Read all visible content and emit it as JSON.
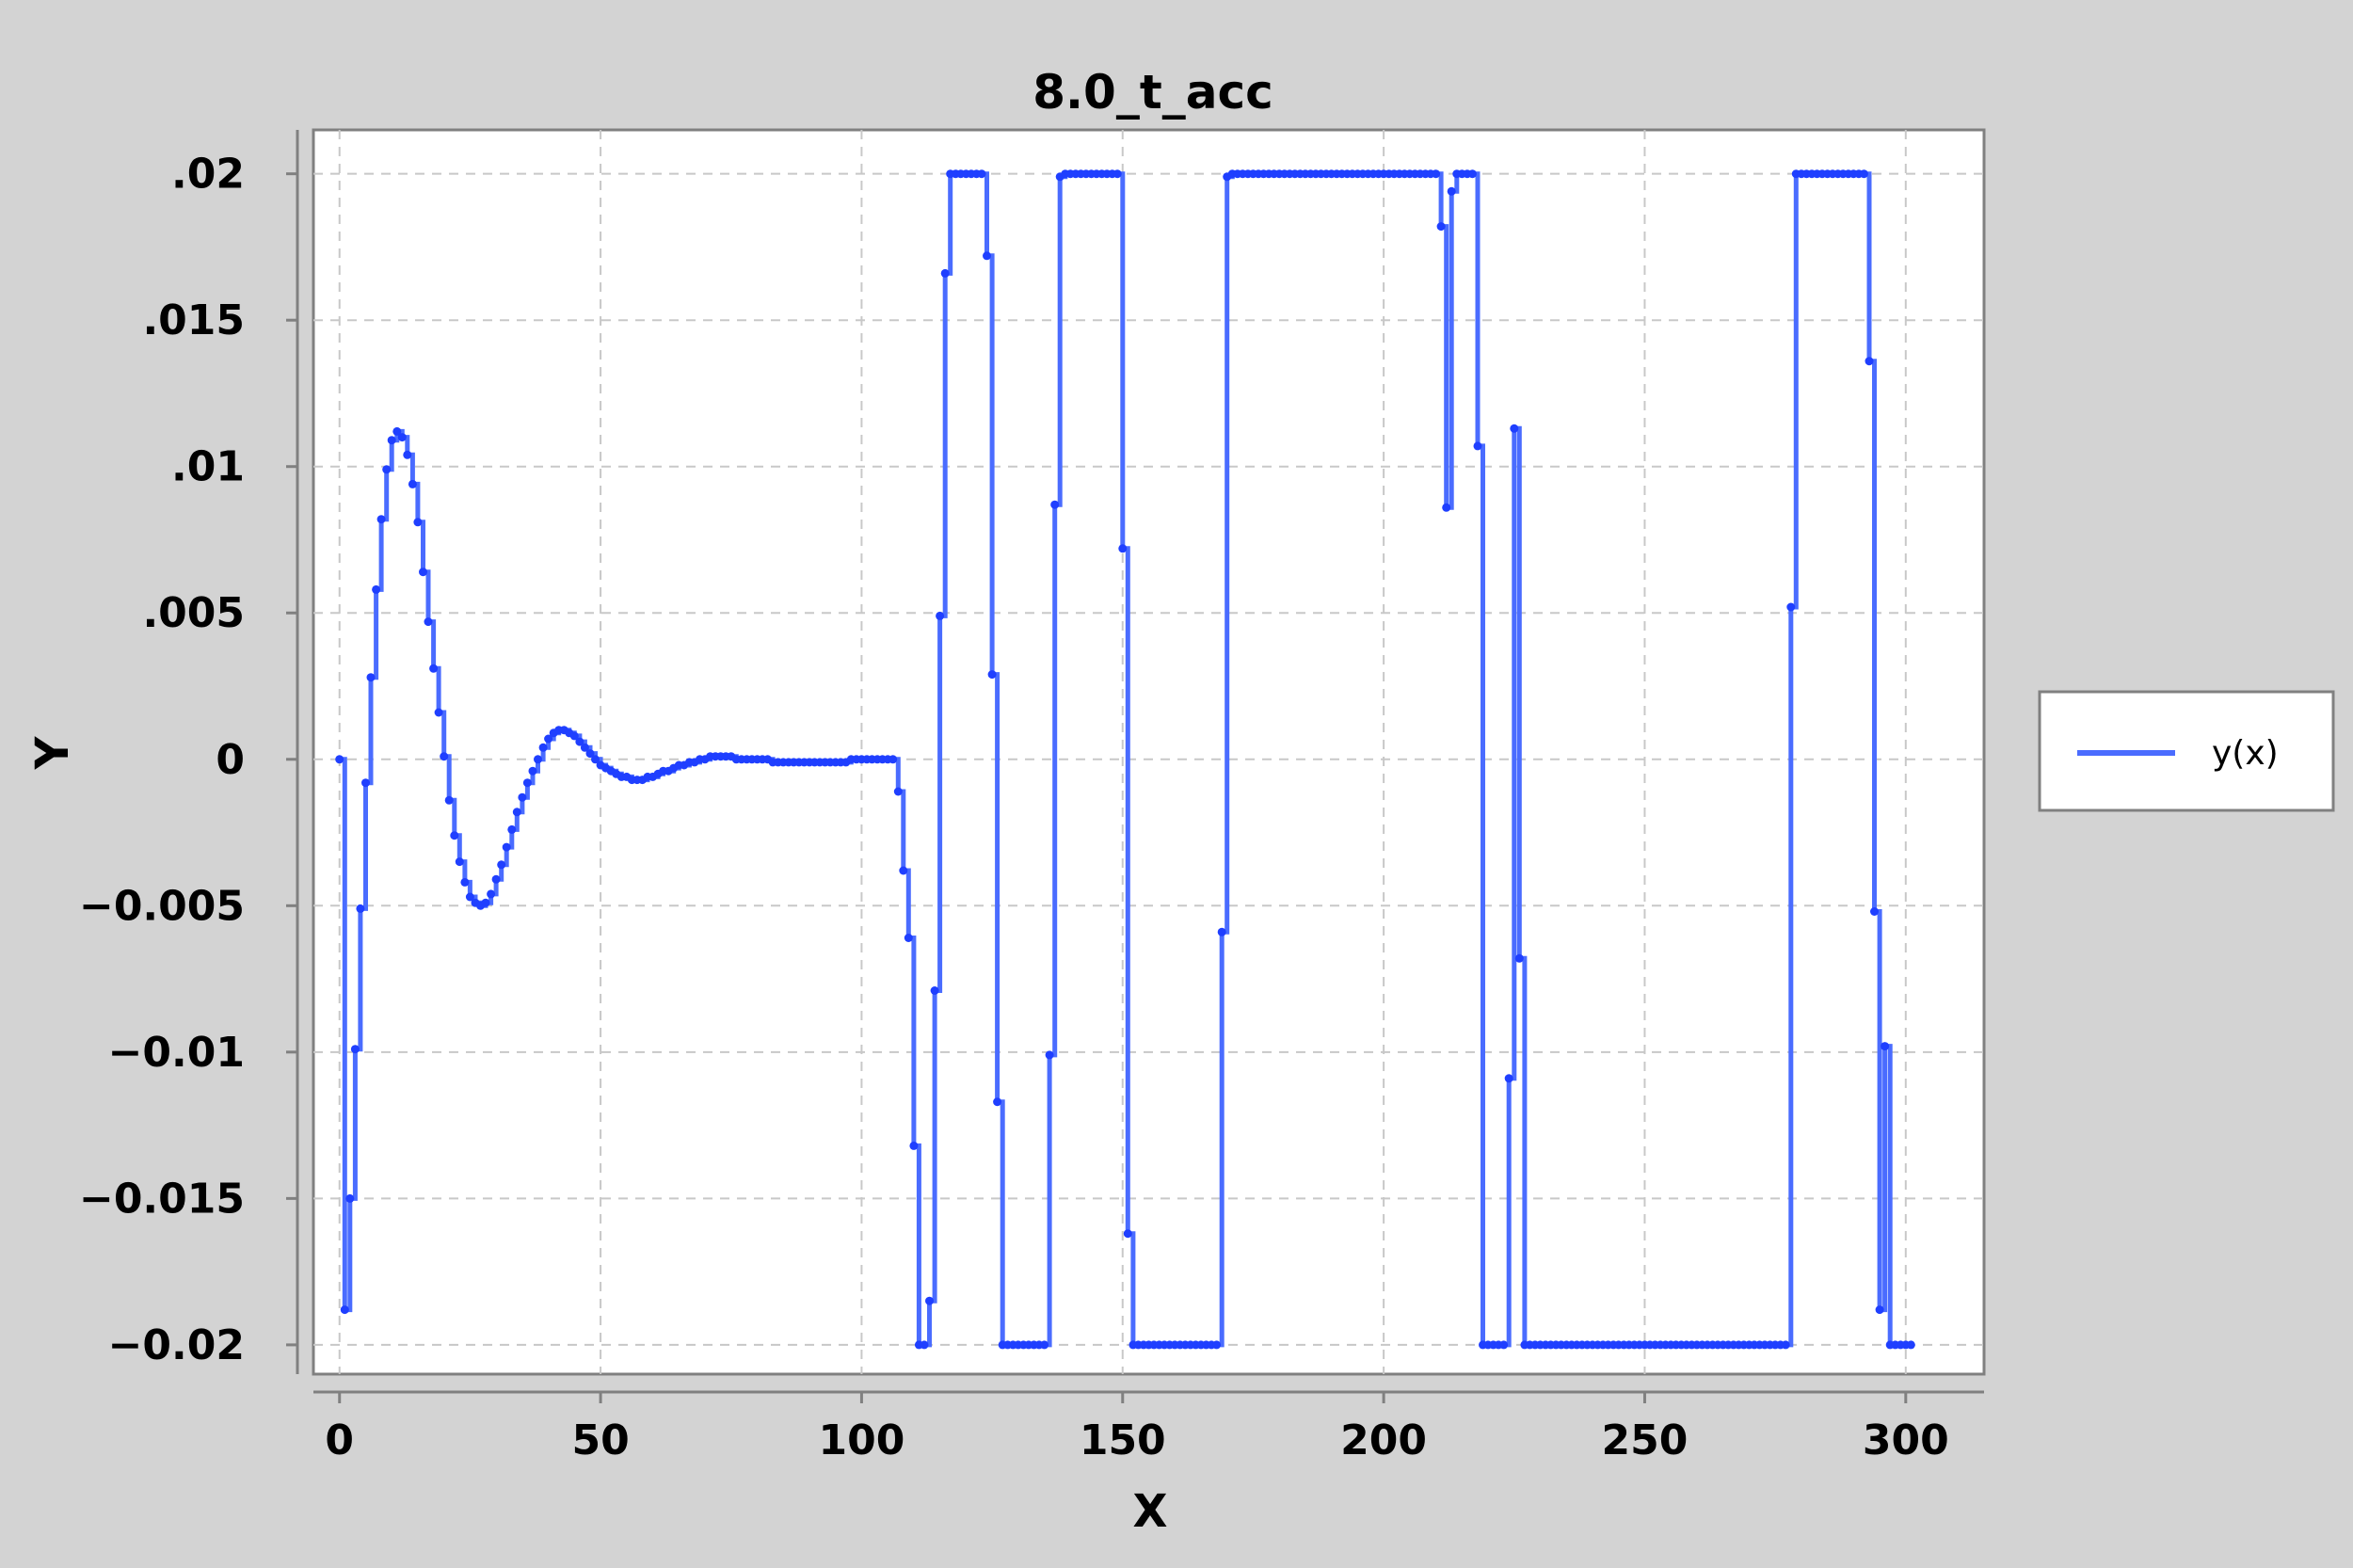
{
  "chart_data": {
    "type": "line",
    "title": "8.0_t_acc",
    "xlabel": "X",
    "ylabel": "Y",
    "xlim": [
      -5,
      315
    ],
    "ylim": [
      -0.021,
      0.0215
    ],
    "grid": true,
    "legend_position": "right",
    "line_color": "#1f3fff",
    "x_ticks": [
      0,
      50,
      100,
      150,
      200,
      250,
      300
    ],
    "x_tick_labels": [
      "0",
      "50",
      "100",
      "150",
      "200",
      "250",
      "300"
    ],
    "y_ticks": [
      0.02,
      0.015,
      0.01,
      0.005,
      0,
      -0.005,
      -0.01,
      -0.015,
      -0.02
    ],
    "y_tick_labels": [
      ".02",
      ".015",
      ".01",
      ".005",
      "0",
      "−0.005",
      "−0.01",
      "−0.015",
      "−0.02"
    ],
    "series": [
      {
        "name": "y(x)",
        "step": true,
        "points": [
          [
            0,
            0
          ],
          [
            1,
            -0.0188
          ],
          [
            2,
            -0.015
          ],
          [
            3,
            -0.0099
          ],
          [
            4,
            -0.0051
          ],
          [
            5,
            -0.0008
          ],
          [
            6,
            0.0028
          ],
          [
            7,
            0.0058
          ],
          [
            8,
            0.0082
          ],
          [
            9,
            0.0099
          ],
          [
            10,
            0.0109
          ],
          [
            11,
            0.0112
          ],
          [
            12,
            0.011
          ],
          [
            13,
            0.0104
          ],
          [
            14,
            0.0094
          ],
          [
            15,
            0.0081
          ],
          [
            16,
            0.0064
          ],
          [
            17,
            0.0047
          ],
          [
            18,
            0.0031
          ],
          [
            19,
            0.0016
          ],
          [
            20,
            0.0001
          ],
          [
            21,
            -0.0014
          ],
          [
            22,
            -0.0026
          ],
          [
            23,
            -0.0035
          ],
          [
            24,
            -0.0042
          ],
          [
            25,
            -0.0047
          ],
          [
            26,
            -0.0049
          ],
          [
            27,
            -0.005
          ],
          [
            28,
            -0.0049
          ],
          [
            29,
            -0.0046
          ],
          [
            30,
            -0.0041
          ],
          [
            31,
            -0.0036
          ],
          [
            32,
            -0.003
          ],
          [
            33,
            -0.0024
          ],
          [
            34,
            -0.0018
          ],
          [
            35,
            -0.0013
          ],
          [
            36,
            -0.0008
          ],
          [
            37,
            -0.0004
          ],
          [
            38,
            0.0
          ],
          [
            39,
            0.0004
          ],
          [
            40,
            0.0007
          ],
          [
            41,
            0.0009
          ],
          [
            42,
            0.001
          ],
          [
            43,
            0.001
          ],
          [
            44,
            0.0009
          ],
          [
            45,
            0.0008
          ],
          [
            46,
            0.0006
          ],
          [
            47,
            0.0004
          ],
          [
            48,
            0.0002
          ],
          [
            49,
            0.0
          ],
          [
            50,
            -0.0002
          ],
          [
            51,
            -0.0003
          ],
          [
            52,
            -0.0004
          ],
          [
            53,
            -0.0005
          ],
          [
            54,
            -0.0006
          ],
          [
            55,
            -0.0006
          ],
          [
            56,
            -0.0007
          ],
          [
            57,
            -0.0007
          ],
          [
            58,
            -0.0007
          ],
          [
            59,
            -0.0006
          ],
          [
            60,
            -0.0006
          ],
          [
            61,
            -0.0005
          ],
          [
            62,
            -0.0004
          ],
          [
            63,
            -0.0004
          ],
          [
            64,
            -0.0003
          ],
          [
            65,
            -0.0002
          ],
          [
            66,
            -0.0002
          ],
          [
            67,
            -0.0001
          ],
          [
            68,
            -0.0001
          ],
          [
            69,
            0.0
          ],
          [
            70,
            0.0
          ],
          [
            71,
            0.0001
          ],
          [
            72,
            0.0001
          ],
          [
            73,
            0.0001
          ],
          [
            74,
            0.0001
          ],
          [
            75,
            0.0001
          ],
          [
            76,
            0.0
          ],
          [
            77,
            0.0
          ],
          [
            78,
            0.0
          ],
          [
            79,
            0.0
          ],
          [
            80,
            0.0
          ],
          [
            81,
            0.0
          ],
          [
            82,
            0.0
          ],
          [
            83,
            -0.0001
          ],
          [
            84,
            -0.0001
          ],
          [
            85,
            -0.0001
          ],
          [
            86,
            -0.0001
          ],
          [
            87,
            -0.0001
          ],
          [
            88,
            -0.0001
          ],
          [
            89,
            -0.0001
          ],
          [
            90,
            -0.0001
          ],
          [
            91,
            -0.0001
          ],
          [
            92,
            -0.0001
          ],
          [
            93,
            -0.0001
          ],
          [
            94,
            -0.0001
          ],
          [
            95,
            -0.0001
          ],
          [
            96,
            -0.0001
          ],
          [
            97,
            -0.0001
          ],
          [
            98,
            0.0
          ],
          [
            99,
            0.0
          ],
          [
            100,
            0.0
          ],
          [
            101,
            0.0
          ],
          [
            102,
            0.0
          ],
          [
            103,
            0.0
          ],
          [
            104,
            0.0
          ],
          [
            105,
            0.0
          ],
          [
            106,
            0.0
          ],
          [
            107,
            -0.0011
          ],
          [
            108,
            -0.0038
          ],
          [
            109,
            -0.0061
          ],
          [
            110,
            -0.0132
          ],
          [
            111,
            -0.02
          ],
          [
            112,
            -0.02
          ],
          [
            113,
            -0.0185
          ],
          [
            114,
            -0.0079
          ],
          [
            115,
            0.0049
          ],
          [
            116,
            0.0166
          ],
          [
            117,
            0.02
          ],
          [
            118,
            0.02
          ],
          [
            119,
            0.02
          ],
          [
            120,
            0.02
          ],
          [
            121,
            0.02
          ],
          [
            122,
            0.02
          ],
          [
            123,
            0.02
          ],
          [
            124,
            0.0172
          ],
          [
            125,
            0.0029
          ],
          [
            126,
            -0.0117
          ],
          [
            127,
            -0.02
          ],
          [
            128,
            -0.02
          ],
          [
            129,
            -0.02
          ],
          [
            130,
            -0.02
          ],
          [
            131,
            -0.02
          ],
          [
            132,
            -0.02
          ],
          [
            133,
            -0.02
          ],
          [
            134,
            -0.02
          ],
          [
            135,
            -0.02
          ],
          [
            136,
            -0.0101
          ],
          [
            137,
            0.0087
          ],
          [
            138,
            0.0199
          ],
          [
            139,
            0.02
          ],
          [
            140,
            0.02
          ],
          [
            141,
            0.02
          ],
          [
            142,
            0.02
          ],
          [
            143,
            0.02
          ],
          [
            144,
            0.02
          ],
          [
            145,
            0.02
          ],
          [
            146,
            0.02
          ],
          [
            147,
            0.02
          ],
          [
            148,
            0.02
          ],
          [
            149,
            0.02
          ],
          [
            150,
            0.0072
          ],
          [
            151,
            -0.0162
          ],
          [
            152,
            -0.02
          ],
          [
            153,
            -0.02
          ],
          [
            154,
            -0.02
          ],
          [
            155,
            -0.02
          ],
          [
            156,
            -0.02
          ],
          [
            157,
            -0.02
          ],
          [
            158,
            -0.02
          ],
          [
            159,
            -0.02
          ],
          [
            160,
            -0.02
          ],
          [
            161,
            -0.02
          ],
          [
            162,
            -0.02
          ],
          [
            163,
            -0.02
          ],
          [
            164,
            -0.02
          ],
          [
            165,
            -0.02
          ],
          [
            166,
            -0.02
          ],
          [
            167,
            -0.02
          ],
          [
            168,
            -0.02
          ],
          [
            169,
            -0.0059
          ],
          [
            170,
            0.0199
          ],
          [
            171,
            0.02
          ],
          [
            172,
            0.02
          ],
          [
            173,
            0.02
          ],
          [
            174,
            0.02
          ],
          [
            175,
            0.02
          ],
          [
            176,
            0.02
          ],
          [
            177,
            0.02
          ],
          [
            178,
            0.02
          ],
          [
            179,
            0.02
          ],
          [
            180,
            0.02
          ],
          [
            181,
            0.02
          ],
          [
            182,
            0.02
          ],
          [
            183,
            0.02
          ],
          [
            184,
            0.02
          ],
          [
            185,
            0.02
          ],
          [
            186,
            0.02
          ],
          [
            187,
            0.02
          ],
          [
            188,
            0.02
          ],
          [
            189,
            0.02
          ],
          [
            190,
            0.02
          ],
          [
            191,
            0.02
          ],
          [
            192,
            0.02
          ],
          [
            193,
            0.02
          ],
          [
            194,
            0.02
          ],
          [
            195,
            0.02
          ],
          [
            196,
            0.02
          ],
          [
            197,
            0.02
          ],
          [
            198,
            0.02
          ],
          [
            199,
            0.02
          ],
          [
            200,
            0.02
          ],
          [
            201,
            0.02
          ],
          [
            202,
            0.02
          ],
          [
            203,
            0.02
          ],
          [
            204,
            0.02
          ],
          [
            205,
            0.02
          ],
          [
            206,
            0.02
          ],
          [
            207,
            0.02
          ],
          [
            208,
            0.02
          ],
          [
            209,
            0.02
          ],
          [
            210,
            0.02
          ],
          [
            211,
            0.0182
          ],
          [
            212,
            0.0086
          ],
          [
            213,
            0.0194
          ],
          [
            214,
            0.02
          ],
          [
            215,
            0.02
          ],
          [
            216,
            0.02
          ],
          [
            217,
            0.02
          ],
          [
            218,
            0.0107
          ],
          [
            219,
            -0.02
          ],
          [
            220,
            -0.02
          ],
          [
            221,
            -0.02
          ],
          [
            222,
            -0.02
          ],
          [
            223,
            -0.02
          ],
          [
            224,
            -0.0109
          ],
          [
            225,
            0.0113
          ],
          [
            226,
            -0.0068
          ],
          [
            227,
            -0.02
          ],
          [
            228,
            -0.02
          ],
          [
            229,
            -0.02
          ],
          [
            230,
            -0.02
          ],
          [
            231,
            -0.02
          ],
          [
            232,
            -0.02
          ],
          [
            233,
            -0.02
          ],
          [
            234,
            -0.02
          ],
          [
            235,
            -0.02
          ],
          [
            236,
            -0.02
          ],
          [
            237,
            -0.02
          ],
          [
            238,
            -0.02
          ],
          [
            239,
            -0.02
          ],
          [
            240,
            -0.02
          ],
          [
            241,
            -0.02
          ],
          [
            242,
            -0.02
          ],
          [
            243,
            -0.02
          ],
          [
            244,
            -0.02
          ],
          [
            245,
            -0.02
          ],
          [
            246,
            -0.02
          ],
          [
            247,
            -0.02
          ],
          [
            248,
            -0.02
          ],
          [
            249,
            -0.02
          ],
          [
            250,
            -0.02
          ],
          [
            251,
            -0.02
          ],
          [
            252,
            -0.02
          ],
          [
            253,
            -0.02
          ],
          [
            254,
            -0.02
          ],
          [
            255,
            -0.02
          ],
          [
            256,
            -0.02
          ],
          [
            257,
            -0.02
          ],
          [
            258,
            -0.02
          ],
          [
            259,
            -0.02
          ],
          [
            260,
            -0.02
          ],
          [
            261,
            -0.02
          ],
          [
            262,
            -0.02
          ],
          [
            263,
            -0.02
          ],
          [
            264,
            -0.02
          ],
          [
            265,
            -0.02
          ],
          [
            266,
            -0.02
          ],
          [
            267,
            -0.02
          ],
          [
            268,
            -0.02
          ],
          [
            269,
            -0.02
          ],
          [
            270,
            -0.02
          ],
          [
            271,
            -0.02
          ],
          [
            272,
            -0.02
          ],
          [
            273,
            -0.02
          ],
          [
            274,
            -0.02
          ],
          [
            275,
            -0.02
          ],
          [
            276,
            -0.02
          ],
          [
            277,
            -0.02
          ],
          [
            278,
            0.0052
          ],
          [
            279,
            0.02
          ],
          [
            280,
            0.02
          ],
          [
            281,
            0.02
          ],
          [
            282,
            0.02
          ],
          [
            283,
            0.02
          ],
          [
            284,
            0.02
          ],
          [
            285,
            0.02
          ],
          [
            286,
            0.02
          ],
          [
            287,
            0.02
          ],
          [
            288,
            0.02
          ],
          [
            289,
            0.02
          ],
          [
            290,
            0.02
          ],
          [
            291,
            0.02
          ],
          [
            292,
            0.02
          ],
          [
            293,
            0.0136
          ],
          [
            294,
            -0.0052
          ],
          [
            295,
            -0.0188
          ],
          [
            296,
            -0.0098
          ],
          [
            297,
            -0.02
          ],
          [
            298,
            -0.02
          ],
          [
            299,
            -0.02
          ],
          [
            300,
            -0.02
          ],
          [
            301,
            -0.02
          ]
        ]
      }
    ]
  }
}
